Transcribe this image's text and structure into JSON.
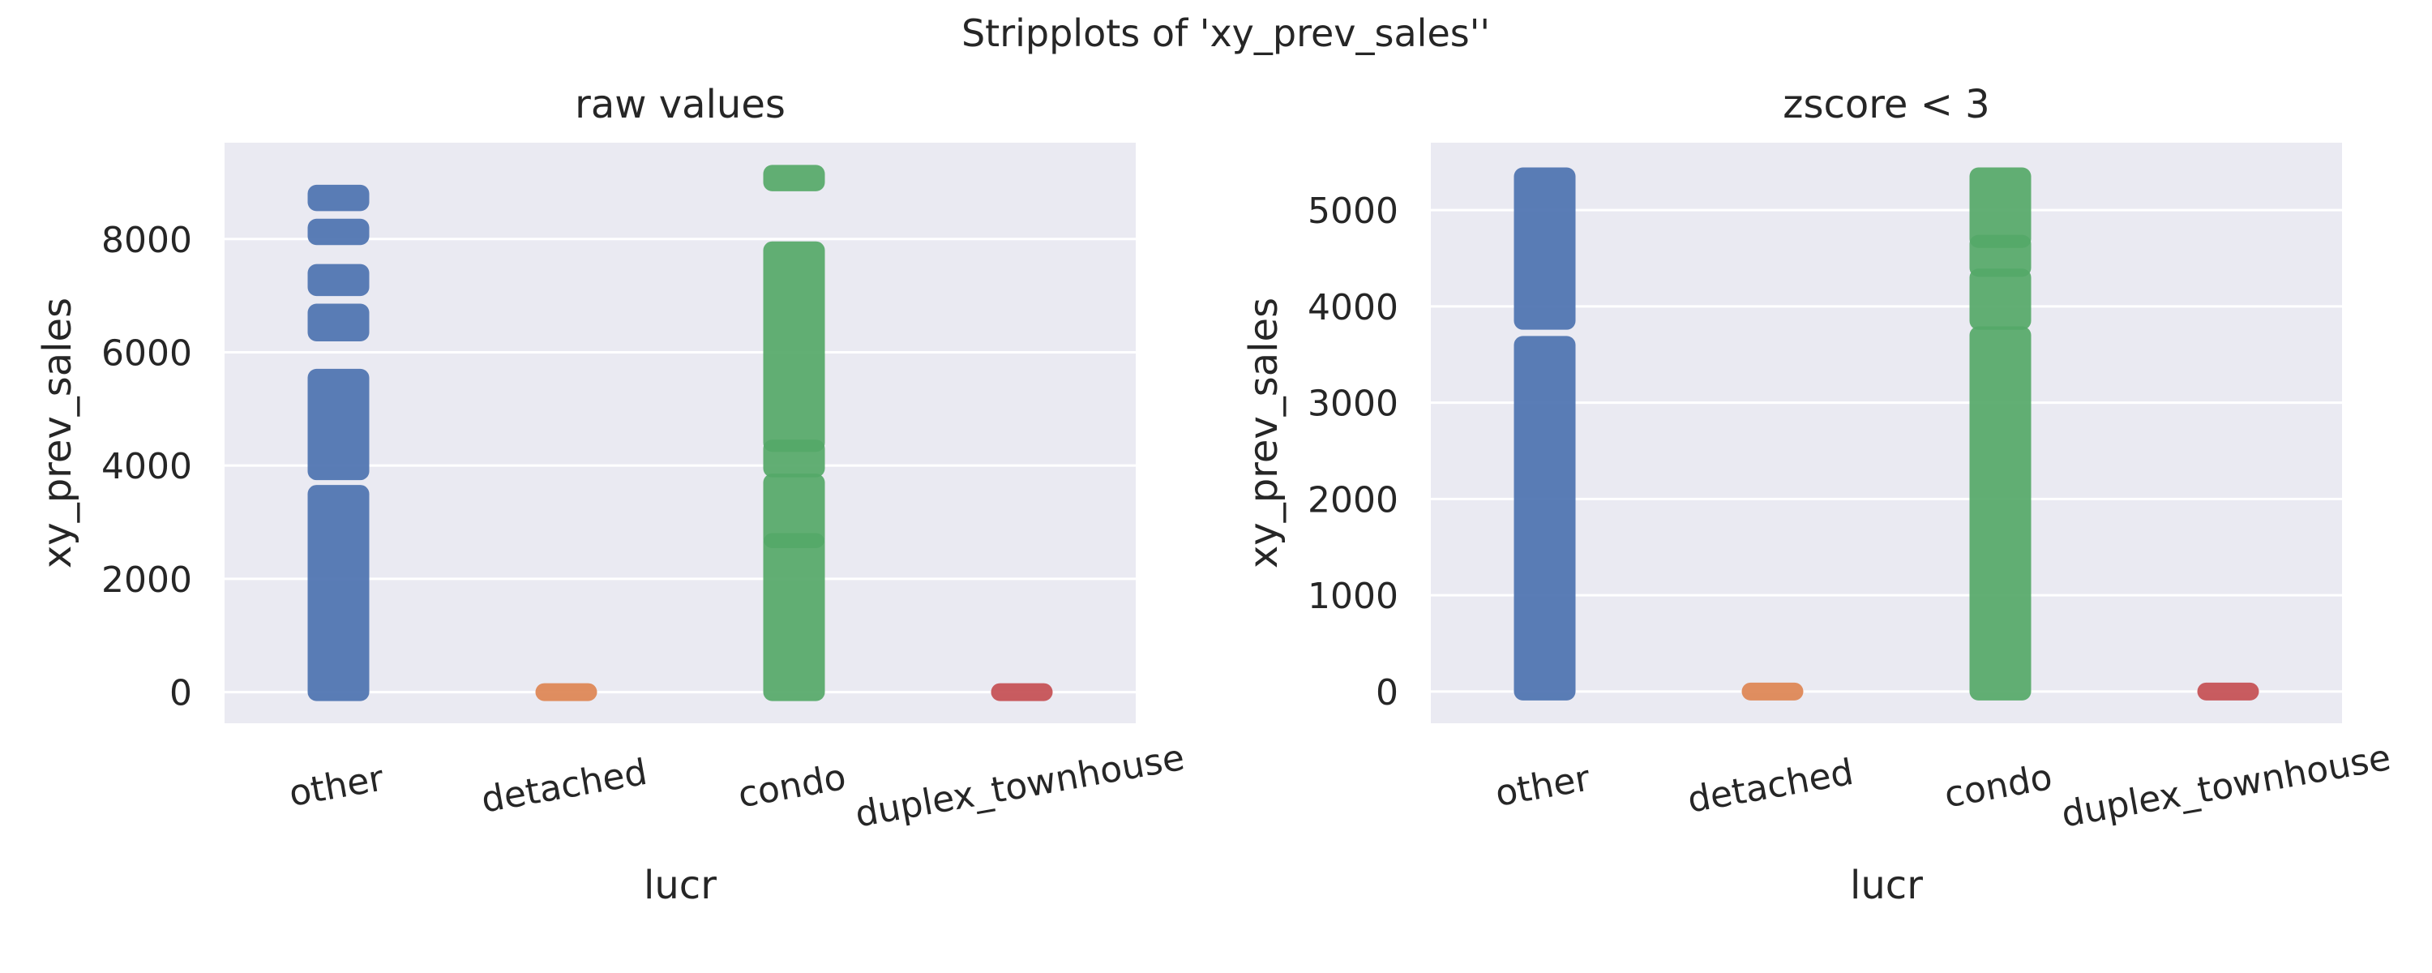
{
  "figure": {
    "suptitle": "Stripplots of 'xy_prev_sales''"
  },
  "style": {
    "panel_bg": "#EAEAF2",
    "grid_color": "#FFFFFF",
    "text_color": "#262626"
  },
  "chart_data": [
    {
      "type": "scatter",
      "subtype": "stripplot",
      "title": "raw values",
      "xlabel": "lucr",
      "ylabel": "xy_prev_sales",
      "categories": [
        "other",
        "detached",
        "condo",
        "duplex_townhouse"
      ],
      "colors": [
        "#4C72B0",
        "#DD8452",
        "#55A868",
        "#C44E52"
      ],
      "ylim": [
        -550,
        9700
      ],
      "yticks": [
        0,
        2000,
        4000,
        6000,
        8000
      ],
      "grid": true,
      "series": [
        {
          "category": "other",
          "ranges": [
            [
              0,
              3500
            ],
            [
              3900,
              5550
            ],
            [
              6350,
              6700
            ],
            [
              7150,
              7400
            ],
            [
              8050,
              8200
            ],
            [
              8650,
              8800
            ]
          ]
        },
        {
          "category": "detached",
          "ranges": [
            [
              0,
              0
            ]
          ]
        },
        {
          "category": "condo",
          "ranges": [
            [
              0,
              2650
            ],
            [
              2700,
              3700
            ],
            [
              3950,
              4300
            ],
            [
              4400,
              7800
            ],
            [
              9000,
              9150
            ]
          ]
        },
        {
          "category": "duplex_townhouse",
          "ranges": [
            [
              0,
              0
            ]
          ]
        }
      ]
    },
    {
      "type": "scatter",
      "subtype": "stripplot",
      "title": "zscore < 3",
      "xlabel": "lucr",
      "ylabel": "xy_prev_sales",
      "categories": [
        "other",
        "detached",
        "condo",
        "duplex_townhouse"
      ],
      "colors": [
        "#4C72B0",
        "#DD8452",
        "#55A868",
        "#C44E52"
      ],
      "ylim": [
        -330,
        5700
      ],
      "yticks": [
        0,
        1000,
        2000,
        3000,
        4000,
        5000
      ],
      "grid": true,
      "series": [
        {
          "category": "other",
          "ranges": [
            [
              0,
              3600
            ],
            [
              3850,
              5350
            ]
          ]
        },
        {
          "category": "detached",
          "ranges": [
            [
              0,
              0
            ]
          ]
        },
        {
          "category": "condo",
          "ranges": [
            [
              0,
              3700
            ],
            [
              3850,
              4300
            ],
            [
              4400,
              4650
            ],
            [
              4700,
              5350
            ]
          ]
        },
        {
          "category": "duplex_townhouse",
          "ranges": [
            [
              0,
              0
            ]
          ]
        }
      ]
    }
  ]
}
